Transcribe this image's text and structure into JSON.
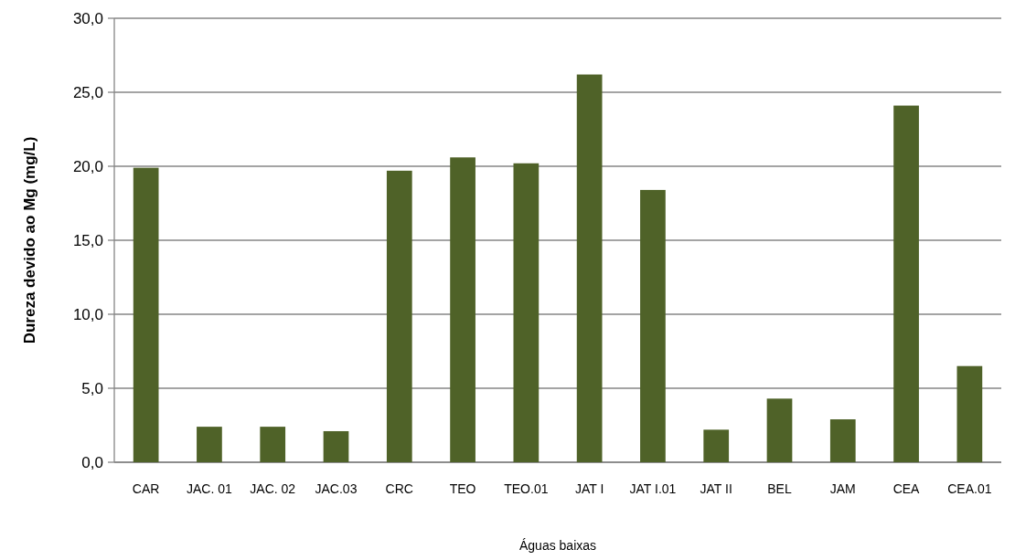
{
  "chart_data": {
    "type": "bar",
    "xlabel": "Águas baixas",
    "ylabel": "Dureza devido ao Mg (mg/L)",
    "categories": [
      "CAR",
      "JAC. 01",
      "JAC. 02",
      "JAC.03",
      "CRC",
      "TEO",
      "TEO.01",
      "JAT I",
      "JAT I.01",
      "JAT II",
      "BEL",
      "JAM",
      "CEA",
      "CEA.01"
    ],
    "values": [
      19.9,
      2.4,
      2.4,
      2.1,
      19.7,
      20.6,
      20.2,
      26.2,
      18.4,
      2.2,
      4.3,
      2.9,
      24.1,
      6.5
    ],
    "color": "#4f6228",
    "ylim": [
      0,
      30
    ],
    "yticks": [
      {
        "value": 0,
        "label": "0,0"
      },
      {
        "value": 5,
        "label": "5,0"
      },
      {
        "value": 10,
        "label": "10,0"
      },
      {
        "value": 15,
        "label": "15,0"
      },
      {
        "value": 20,
        "label": "20,0"
      },
      {
        "value": 25,
        "label": "25,0"
      },
      {
        "value": 30,
        "label": "30,0"
      }
    ],
    "grid": "y"
  }
}
